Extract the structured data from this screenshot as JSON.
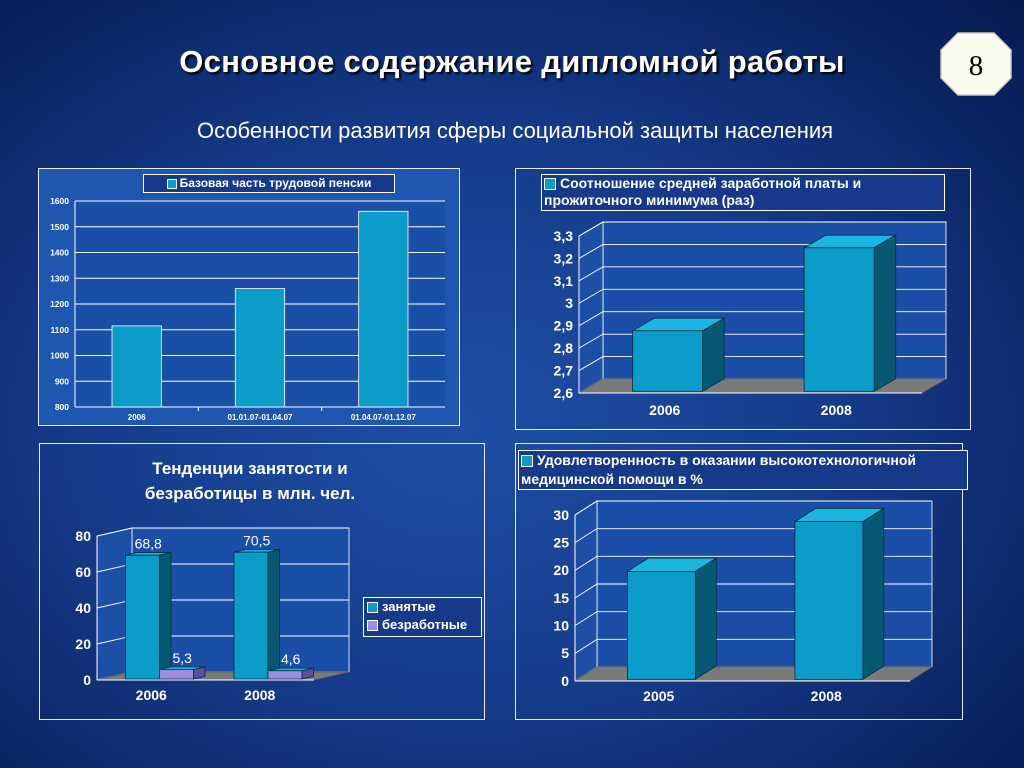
{
  "slide": {
    "title": "Основное содержание дипломной работы",
    "subtitle": "Особенности развития сферы социальной защиты населения",
    "page_number": "8"
  },
  "colors": {
    "background": "#173f90",
    "bar_cyan": "#0c9cc9",
    "bar_lavender": "#9b8ee0",
    "floor_grey": "#7a7a7a",
    "badge_fill": "#fbfbee"
  },
  "chart_data": [
    {
      "type": "bar",
      "legend": [
        "Базовая часть трудовой пенсии"
      ],
      "categories": [
        "2006",
        "01.01.07-01.04.07",
        "01.04.07-01.12.07"
      ],
      "series": [
        {
          "name": "Базовая часть трудовой пенсии",
          "values": [
            1115,
            1260,
            1560
          ]
        }
      ],
      "ylim": [
        800,
        1600
      ],
      "yticks": [
        "800",
        "900",
        "1000",
        "1100",
        "1200",
        "1300",
        "1400",
        "1500",
        "1600"
      ],
      "grid": true,
      "legend_position": "top"
    },
    {
      "type": "bar",
      "style": "3d",
      "legend": [
        "Соотношение средней заработной платы и прожиточного минимума (раз)"
      ],
      "categories": [
        "2006",
        "2008"
      ],
      "series": [
        {
          "name": "Соотношение средней заработной платы и прожиточного минимума (раз)",
          "values": [
            2.87,
            3.24
          ]
        }
      ],
      "ylim": [
        2.6,
        3.3
      ],
      "yticks": [
        "2,6",
        "2,7",
        "2,8",
        "2,9",
        "3",
        "3,1",
        "3,2",
        "3,3"
      ],
      "grid": true,
      "legend_position": "top"
    },
    {
      "type": "bar",
      "style": "3d",
      "title": "Тенденции занятости и безработицы в млн. чел.",
      "categories": [
        "2006",
        "2008"
      ],
      "series": [
        {
          "name": "занятые",
          "values": [
            68.8,
            70.5
          ],
          "labels": [
            "68,8",
            "70,5"
          ]
        },
        {
          "name": "безработные",
          "values": [
            5.3,
            4.6
          ],
          "labels": [
            "5,3",
            "4,6"
          ]
        }
      ],
      "ylim": [
        0,
        80
      ],
      "yticks": [
        "0",
        "20",
        "40",
        "60",
        "80"
      ],
      "grid": true,
      "legend_position": "right"
    },
    {
      "type": "bar",
      "style": "3d",
      "legend": [
        "Удовлетворенность в оказании высокотехнологичной медицинской помощи в %"
      ],
      "categories": [
        "2005",
        "2008"
      ],
      "series": [
        {
          "name": "Удовлетворенность в оказании высокотехнологичной медицинской помощи в %",
          "values": [
            19.5,
            28.5
          ]
        }
      ],
      "ylim": [
        0,
        30
      ],
      "yticks": [
        "0",
        "5",
        "10",
        "15",
        "20",
        "25",
        "30"
      ],
      "grid": true,
      "legend_position": "top"
    }
  ]
}
